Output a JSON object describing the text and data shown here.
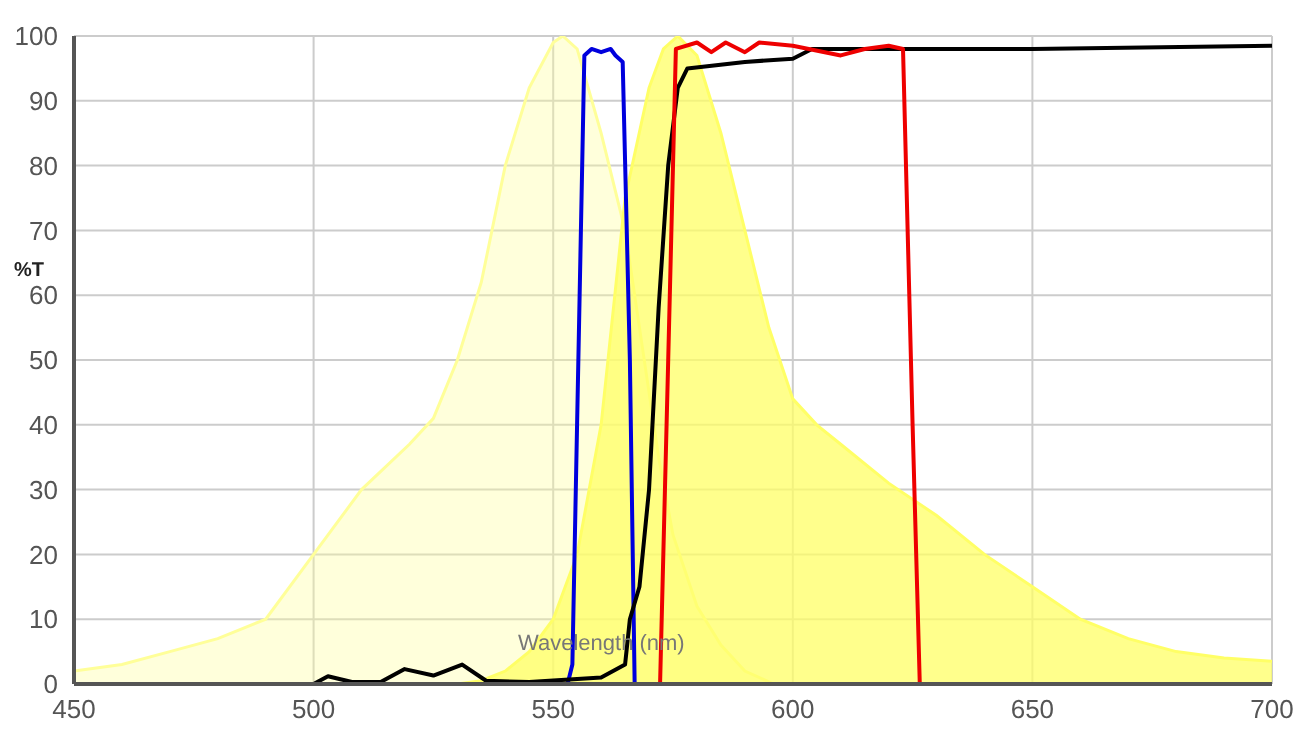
{
  "chart_data": {
    "type": "line",
    "xlabel": "Wavelength (nm)",
    "ylabel": "%T",
    "xlim": [
      450,
      700
    ],
    "ylim": [
      0,
      100
    ],
    "xticks": [
      450,
      500,
      550,
      600,
      650,
      700
    ],
    "yticks": [
      0,
      10,
      20,
      30,
      40,
      50,
      60,
      70,
      80,
      90,
      100
    ],
    "grid": true,
    "marker": "none",
    "line_style": "solid",
    "series": [
      {
        "type": "area",
        "color": "#ffff99",
        "x": [
          450,
          460,
          470,
          480,
          490,
          500,
          510,
          520,
          525,
          530,
          535,
          540,
          545,
          550,
          552,
          555,
          560,
          565,
          568,
          572,
          575,
          580,
          585,
          590,
          596,
          600
        ],
        "values": [
          2,
          3,
          5,
          7,
          10,
          20,
          30,
          37,
          41,
          50,
          62,
          80,
          92,
          99,
          100,
          98,
          85,
          70,
          55,
          35,
          23,
          12,
          6,
          2,
          0,
          0
        ]
      },
      {
        "type": "area",
        "color": "#ffff66",
        "x": [
          530,
          535,
          540,
          545,
          550,
          555,
          560,
          565,
          570,
          573,
          576,
          580,
          585,
          590,
          595,
          600,
          605,
          610,
          620,
          630,
          640,
          650,
          660,
          670,
          680,
          690,
          700
        ],
        "values": [
          0,
          0.5,
          2,
          5,
          10,
          20,
          40,
          75,
          92,
          98,
          100,
          97,
          85,
          70,
          55,
          44,
          40,
          37,
          31,
          26,
          20,
          15,
          10,
          7,
          5,
          4,
          3.5
        ]
      },
      {
        "color": "#0000dd",
        "x": [
          450,
          553,
          554,
          556.5,
          558,
          560,
          562,
          563,
          564.5,
          566,
          567,
          600,
          627
        ],
        "values": [
          0,
          0,
          3,
          97,
          98,
          97.5,
          98,
          97,
          96,
          50,
          0,
          0,
          0
        ]
      },
      {
        "color": "#000000",
        "x": [
          450,
          500,
          503,
          508,
          514,
          519,
          525,
          531,
          536,
          545,
          560,
          565,
          566,
          568,
          570,
          572,
          574,
          576,
          578,
          590,
          600,
          604,
          620,
          650,
          700
        ],
        "values": [
          0,
          0,
          1.2,
          0.3,
          0.3,
          2.3,
          1.3,
          3,
          0.5,
          0.3,
          1,
          3,
          10,
          15,
          30,
          58,
          80,
          92,
          95,
          96,
          96.5,
          98,
          98,
          98,
          98.5
        ]
      },
      {
        "color": "#ee0000",
        "x": [
          450,
          572.3,
          574,
          575.6,
          580,
          583,
          586,
          590,
          593,
          600,
          610,
          615,
          620,
          623,
          625,
          626.5,
          700
        ],
        "values": [
          0,
          0,
          50,
          98,
          99,
          97.5,
          99,
          97.5,
          99,
          98.5,
          97,
          98,
          98.5,
          98,
          40,
          0,
          0
        ]
      }
    ]
  }
}
